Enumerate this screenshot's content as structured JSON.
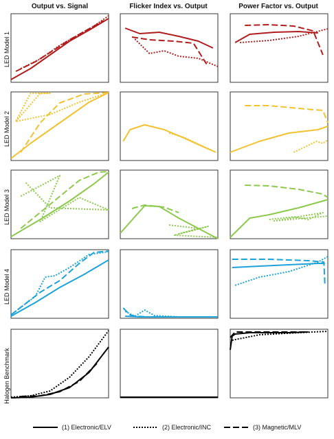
{
  "column_titles": [
    "Output vs. Signal",
    "Flicker Index vs. Output",
    "Power Factor vs. Output"
  ],
  "row_labels": [
    "LED Model 1",
    "LED Model 2",
    "LED Model 3",
    "LED Model 4",
    "Halogen Benchmark"
  ],
  "row_colors": [
    "#b01c1c",
    "#f2c12e",
    "#8cc84b",
    "#1ba3d9",
    "#000000"
  ],
  "legend": [
    {
      "label": "(1) Electronic/ELV",
      "style": "solid"
    },
    {
      "label": "(2) Electronic/INC",
      "style": "dotted"
    },
    {
      "label": "(3) Magnetic/MLV",
      "style": "dashed"
    }
  ],
  "chart_data": [
    {
      "type": "line",
      "row": "LED Model 1",
      "column": "Output vs. Signal",
      "xlim": [
        0,
        1
      ],
      "ylim": [
        0,
        1
      ],
      "series": [
        {
          "name": "(1) Electronic/ELV",
          "x": [
            0,
            0.2,
            0.4,
            0.6,
            0.8,
            1
          ],
          "y": [
            0.04,
            0.2,
            0.4,
            0.6,
            0.76,
            0.93
          ]
        },
        {
          "name": "(2) Electronic/INC",
          "x": [
            0.1,
            0.3,
            0.5,
            0.7,
            0.85,
            1
          ],
          "y": [
            0.2,
            0.34,
            0.54,
            0.7,
            0.82,
            0.97
          ]
        },
        {
          "name": "(3) Magnetic/MLV",
          "x": [
            0.05,
            0.25,
            0.45,
            0.6,
            0.75,
            0.95
          ],
          "y": [
            0.16,
            0.3,
            0.48,
            0.62,
            0.74,
            0.9
          ]
        }
      ]
    },
    {
      "type": "line",
      "row": "LED Model 1",
      "column": "Flicker Index vs. Output",
      "xlim": [
        0,
        1
      ],
      "ylim": [
        0,
        1
      ],
      "series": [
        {
          "name": "(1) Electronic/ELV",
          "x": [
            0.05,
            0.2,
            0.4,
            0.6,
            0.8,
            0.95
          ],
          "y": [
            0.79,
            0.71,
            0.73,
            0.67,
            0.6,
            0.5
          ]
        },
        {
          "name": "(2) Electronic/INC",
          "x": [
            0.15,
            0.3,
            0.45,
            0.6,
            0.8,
            1
          ],
          "y": [
            0.63,
            0.42,
            0.46,
            0.38,
            0.35,
            0.23
          ]
        },
        {
          "name": "(3) Magnetic/MLV",
          "x": [
            0.12,
            0.3,
            0.55,
            0.75,
            0.9
          ],
          "y": [
            0.66,
            0.62,
            0.6,
            0.57,
            0.23
          ]
        }
      ]
    },
    {
      "type": "line",
      "row": "LED Model 1",
      "column": "Power Factor vs. Output",
      "xlim": [
        0,
        1
      ],
      "ylim": [
        0,
        1
      ],
      "series": [
        {
          "name": "(1) Electronic/ELV",
          "x": [
            0.05,
            0.2,
            0.45,
            0.7,
            0.9
          ],
          "y": [
            0.58,
            0.7,
            0.73,
            0.74,
            0.72
          ]
        },
        {
          "name": "(2) Electronic/INC",
          "x": [
            0.1,
            0.4,
            0.7,
            1
          ],
          "y": [
            0.58,
            0.61,
            0.67,
            0.78
          ]
        },
        {
          "name": "(3) Magnetic/MLV",
          "x": [
            0.15,
            0.4,
            0.65,
            0.85,
            0.95
          ],
          "y": [
            0.83,
            0.84,
            0.82,
            0.75,
            0.4
          ]
        }
      ]
    },
    {
      "type": "line",
      "row": "LED Model 2",
      "column": "Output vs. Signal",
      "xlim": [
        0,
        1
      ],
      "ylim": [
        0,
        1
      ],
      "series": [
        {
          "name": "(1) Electronic/ELV",
          "x": [
            0,
            0.2,
            0.4,
            0.6,
            0.8,
            1
          ],
          "y": [
            0.03,
            0.25,
            0.45,
            0.65,
            0.85,
            0.99
          ]
        },
        {
          "name": "(2) Electronic/INC",
          "x": [
            0.05,
            0.3,
            0.4,
            0.2,
            0.05,
            0.4,
            0.7,
            1
          ],
          "y": [
            0.57,
            0.98,
            0.98,
            0.98,
            0.57,
            0.67,
            0.85,
            0.99
          ]
        },
        {
          "name": "(3) Magnetic/MLV",
          "x": [
            0.1,
            0.3,
            0.5,
            0.75,
            1
          ],
          "y": [
            0.12,
            0.55,
            0.84,
            0.97,
            0.99
          ]
        }
      ]
    },
    {
      "type": "line",
      "row": "LED Model 2",
      "column": "Flicker Index vs. Output",
      "xlim": [
        0,
        1
      ],
      "ylim": [
        0,
        1
      ],
      "series": [
        {
          "name": "(1) Electronic/ELV",
          "x": [
            0.03,
            0.1,
            0.25,
            0.45,
            0.65,
            0.85,
            0.98
          ],
          "y": [
            0.28,
            0.45,
            0.52,
            0.45,
            0.33,
            0.2,
            0.12
          ]
        },
        {
          "name": "(2) Electronic/INC",
          "x": [
            0.5,
            0.65,
            0.8,
            0.95
          ],
          "y": [
            0.4,
            0.34,
            0.24,
            0.14
          ]
        }
      ]
    },
    {
      "type": "line",
      "row": "LED Model 2",
      "column": "Power Factor vs. Output",
      "xlim": [
        0,
        1
      ],
      "ylim": [
        0,
        1
      ],
      "series": [
        {
          "name": "(1) Electronic/ELV",
          "x": [
            0,
            0.3,
            0.6,
            0.9,
            1
          ],
          "y": [
            0.12,
            0.28,
            0.4,
            0.45,
            0.5
          ]
        },
        {
          "name": "(2) Electronic/INC",
          "x": [
            0.65,
            0.8,
            0.88,
            0.95,
            1
          ],
          "y": [
            0.12,
            0.22,
            0.28,
            0.25,
            0.3
          ]
        },
        {
          "name": "(3) Magnetic/MLV",
          "x": [
            0.15,
            0.4,
            0.7,
            0.95,
            1
          ],
          "y": [
            0.8,
            0.8,
            0.76,
            0.73,
            0.55
          ]
        }
      ]
    },
    {
      "type": "line",
      "row": "LED Model 3",
      "column": "Output vs. Signal",
      "xlim": [
        0,
        1
      ],
      "ylim": [
        0,
        1
      ],
      "series": [
        {
          "name": "(1) Electronic/ELV",
          "x": [
            0,
            0.3,
            0.6,
            0.85,
            1
          ],
          "y": [
            0.03,
            0.28,
            0.55,
            0.8,
            0.97
          ]
        },
        {
          "name": "(2) Electronic/INC",
          "x": [
            0.1,
            0.5,
            0.3,
            0.7,
            1,
            0.4,
            0.15
          ],
          "y": [
            0.62,
            0.92,
            0.25,
            0.6,
            0.42,
            0.45,
            0.82
          ]
        },
        {
          "name": "(3) Magnetic/MLV",
          "x": [
            0.1,
            0.4,
            0.7,
            0.9,
            1
          ],
          "y": [
            0.15,
            0.5,
            0.85,
            0.97,
            0.98
          ]
        }
      ]
    },
    {
      "type": "line",
      "row": "LED Model 3",
      "column": "Flicker Index vs. Output",
      "xlim": [
        0,
        1
      ],
      "ylim": [
        0,
        1
      ],
      "series": [
        {
          "name": "(1) Electronic/ELV",
          "x": [
            0,
            0.25,
            0.4,
            0.6,
            0.8,
            1
          ],
          "y": [
            0.08,
            0.48,
            0.47,
            0.3,
            0.15,
            0
          ]
        },
        {
          "name": "(2) Electronic/INC",
          "x": [
            0.5,
            0.8,
            0.6,
            0.9,
            0.55,
            1
          ],
          "y": [
            0.2,
            0.15,
            0.07,
            0.18,
            0.05,
            0.02
          ]
        },
        {
          "name": "(3) Magnetic/MLV",
          "x": [
            0.12,
            0.25,
            0.45,
            0.6
          ],
          "y": [
            0.44,
            0.49,
            0.46,
            0.38
          ]
        }
      ]
    },
    {
      "type": "line",
      "row": "LED Model 3",
      "column": "Power Factor vs. Output",
      "xlim": [
        0,
        1
      ],
      "ylim": [
        0,
        1
      ],
      "series": [
        {
          "name": "(1) Electronic/ELV",
          "x": [
            0,
            0.2,
            0.4,
            0.7,
            1
          ],
          "y": [
            0.02,
            0.3,
            0.35,
            0.45,
            0.57
          ]
        },
        {
          "name": "(2) Electronic/INC",
          "x": [
            0.4,
            0.65,
            0.8,
            0.95,
            0.45,
            1
          ],
          "y": [
            0.28,
            0.32,
            0.28,
            0.38,
            0.26,
            0.33
          ]
        },
        {
          "name": "(3) Magnetic/MLV",
          "x": [
            0.15,
            0.4,
            0.7,
            0.95,
            1
          ],
          "y": [
            0.78,
            0.77,
            0.72,
            0.65,
            0.6
          ]
        }
      ]
    },
    {
      "type": "line",
      "row": "LED Model 4",
      "column": "Output vs. Signal",
      "xlim": [
        0,
        1
      ],
      "ylim": [
        0,
        1
      ],
      "series": [
        {
          "name": "(1) Electronic/ELV",
          "x": [
            0,
            0.25,
            0.5,
            0.75,
            1
          ],
          "y": [
            0.03,
            0.23,
            0.45,
            0.64,
            0.85
          ]
        },
        {
          "name": "(2) Electronic/INC",
          "x": [
            0,
            0.25,
            0.35,
            0.45,
            0.6,
            0.8,
            1
          ],
          "y": [
            0.05,
            0.32,
            0.6,
            0.62,
            0.74,
            0.93,
            0.97
          ]
        },
        {
          "name": "(3) Magnetic/MLV",
          "x": [
            0,
            0.3,
            0.5,
            0.7,
            0.85,
            1
          ],
          "y": [
            0.05,
            0.38,
            0.55,
            0.8,
            0.96,
            0.98
          ]
        }
      ]
    },
    {
      "type": "line",
      "row": "LED Model 4",
      "column": "Flicker Index vs. Output",
      "xlim": [
        0,
        1
      ],
      "ylim": [
        0,
        1
      ],
      "series": [
        {
          "name": "(1) Electronic/ELV",
          "x": [
            0.05,
            0.2,
            0.5,
            1
          ],
          "y": [
            0.03,
            0.02,
            0.02,
            0.02
          ]
        },
        {
          "name": "(2) Electronic/INC",
          "x": [
            0.05,
            0.15,
            0.25,
            0.35,
            0.6,
            1
          ],
          "y": [
            0.1,
            0.03,
            0.12,
            0.04,
            0.02,
            0.02
          ]
        },
        {
          "name": "(3) Magnetic/MLV",
          "x": [
            0.03,
            0.1,
            0.15,
            0.3,
            1
          ],
          "y": [
            0.15,
            0.05,
            0.03,
            0.02,
            0.02
          ]
        }
      ]
    },
    {
      "type": "line",
      "row": "LED Model 4",
      "column": "Power Factor vs. Output",
      "xlim": [
        0,
        1
      ],
      "ylim": [
        0,
        1
      ],
      "series": [
        {
          "name": "(1) Electronic/ELV",
          "x": [
            0.02,
            0.3,
            0.6,
            0.9,
            0.97
          ],
          "y": [
            0.74,
            0.76,
            0.78,
            0.8,
            0.8
          ]
        },
        {
          "name": "(2) Electronic/INC",
          "x": [
            0.05,
            0.3,
            0.6,
            0.9,
            1
          ],
          "y": [
            0.48,
            0.6,
            0.68,
            0.82,
            0.9
          ]
        },
        {
          "name": "(3) Magnetic/MLV",
          "x": [
            0.02,
            0.4,
            0.8,
            0.96,
            0.97
          ],
          "y": [
            0.86,
            0.86,
            0.84,
            0.82,
            0.5
          ]
        }
      ]
    },
    {
      "type": "line",
      "row": "Halogen Benchmark",
      "column": "Output vs. Signal",
      "xlim": [
        0,
        1
      ],
      "ylim": [
        0,
        1
      ],
      "series": [
        {
          "name": "(1) Electronic/ELV",
          "x": [
            0,
            0.2,
            0.4,
            0.6,
            0.8,
            1
          ],
          "y": [
            0,
            0.01,
            0.05,
            0.15,
            0.37,
            0.74
          ]
        },
        {
          "name": "(2) Electronic/INC",
          "x": [
            0,
            0.2,
            0.4,
            0.6,
            0.8,
            1
          ],
          "y": [
            0.01,
            0.03,
            0.1,
            0.3,
            0.6,
            0.98
          ]
        },
        {
          "name": "(3) Magnetic/MLV",
          "x": [
            0.1,
            0.3,
            0.5,
            0.7,
            0.9
          ],
          "y": [
            0.02,
            0.03,
            0.09,
            0.24,
            0.53
          ]
        }
      ]
    },
    {
      "type": "line",
      "row": "Halogen Benchmark",
      "column": "Flicker Index vs. Output",
      "xlim": [
        0,
        1
      ],
      "ylim": [
        0,
        1
      ],
      "series": [
        {
          "name": "(1) Electronic/ELV",
          "x": [
            0,
            1
          ],
          "y": [
            0.01,
            0.01
          ]
        },
        {
          "name": "(2) Electronic/INC",
          "x": [
            0,
            1
          ],
          "y": [
            0.01,
            0.01
          ]
        },
        {
          "name": "(3) Magnetic/MLV",
          "x": [
            0,
            1
          ],
          "y": [
            0.01,
            0.01
          ]
        }
      ]
    },
    {
      "type": "line",
      "row": "Halogen Benchmark",
      "column": "Power Factor vs. Output",
      "xlim": [
        0,
        1
      ],
      "ylim": [
        0,
        1
      ],
      "series": [
        {
          "name": "(1) Electronic/ELV",
          "x": [
            0,
            0.02,
            0.05,
            0.2,
            0.6,
            0.8
          ],
          "y": [
            0.7,
            0.9,
            0.93,
            0.95,
            0.95,
            0.96
          ]
        },
        {
          "name": "(2) Electronic/INC",
          "x": [
            0.02,
            0.3,
            0.7,
            1
          ],
          "y": [
            0.84,
            0.92,
            0.95,
            0.97
          ]
        },
        {
          "name": "(3) Magnetic/MLV",
          "x": [
            0,
            0.05,
            0.4,
            0.8
          ],
          "y": [
            0.88,
            0.96,
            0.96,
            0.96
          ]
        }
      ]
    }
  ]
}
